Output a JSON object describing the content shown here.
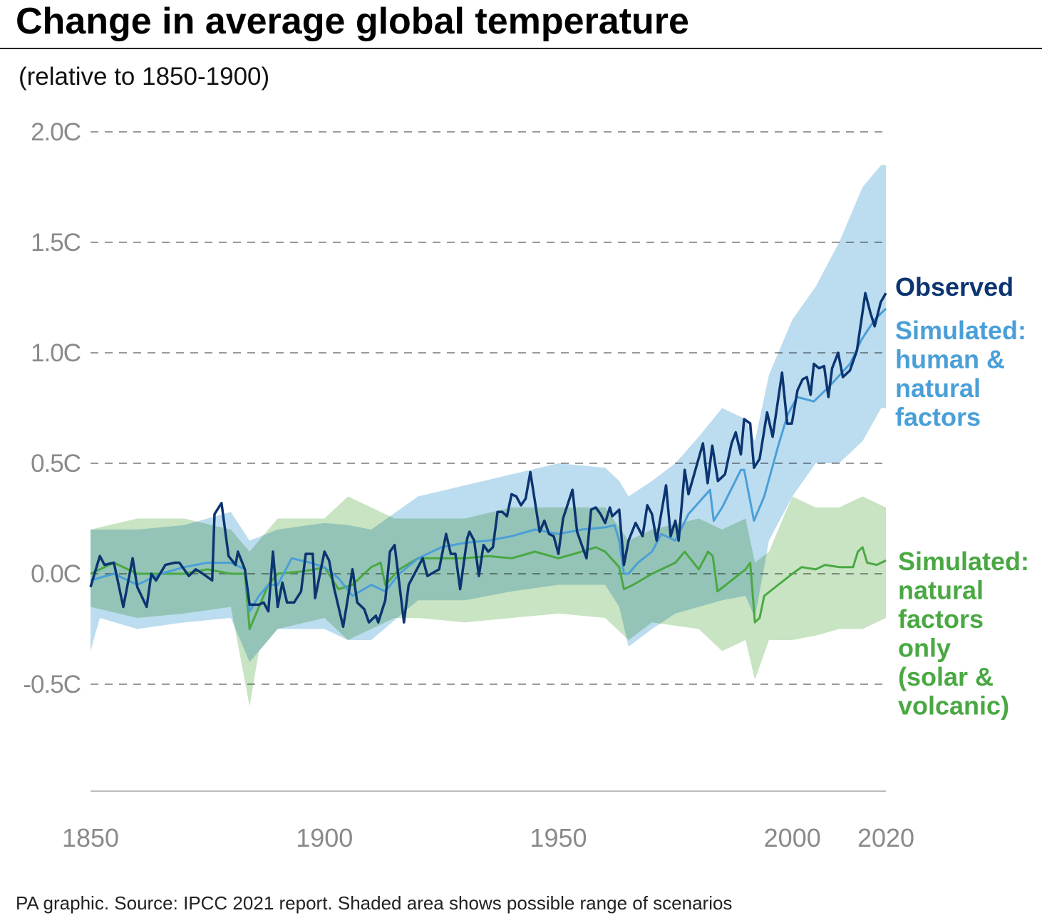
{
  "title": "Change in average global temperature",
  "subtitle": "(relative to 1850-1900)",
  "footer": "PA graphic. Source: IPCC 2021 report. Shaded area shows possible range of scenarios",
  "colors": {
    "observed": "#0b3470",
    "human_natural": "#4a9fd8",
    "human_natural_band": "#bcdcef",
    "natural": "#4aa843",
    "natural_band": "#c8e4c3",
    "grid": "#9a9a9a"
  },
  "chart_data": {
    "type": "line",
    "title": "Change in average global temperature",
    "subtitle": "(relative to 1850-1900)",
    "xlim": [
      1850,
      2020
    ],
    "ylim": [
      -0.95,
      2.0
    ],
    "x_ticks": [
      1850,
      1900,
      1950,
      2000,
      2020
    ],
    "x_tick_labels": [
      "1850",
      "1900",
      "1950",
      "2000",
      "2020"
    ],
    "y_ticks": [
      2.0,
      1.5,
      1.0,
      0.5,
      0.0,
      -0.5
    ],
    "y_tick_labels": [
      "2.0C",
      "1.5C",
      "1.0C",
      "0.5C",
      "0.0C",
      "-0.5C"
    ],
    "grid": "horizontal dashed",
    "legend_placement": "right, labels at line ends",
    "series": [
      {
        "name": "Observed",
        "x": [
          1850,
          1852,
          1853,
          1855,
          1857,
          1859,
          1860,
          1862,
          1863,
          1864,
          1866,
          1868,
          1869,
          1871,
          1872.5,
          1874,
          1876,
          1876.5,
          1878,
          1879.5,
          1881,
          1881.5,
          1883,
          1884,
          1886,
          1887,
          1888,
          1889,
          1890,
          1891,
          1892,
          1893.5,
          1895,
          1896,
          1897.5,
          1898,
          1900,
          1901,
          1902,
          1904,
          1906,
          1907,
          1908.5,
          1909.5,
          1911,
          1911.5,
          1913,
          1914,
          1915,
          1917,
          1918,
          1921,
          1922,
          1924.5,
          1926,
          1927,
          1928,
          1929,
          1930.5,
          1931,
          1932,
          1933,
          1934,
          1935,
          1936,
          1937,
          1938,
          1939,
          1940,
          1941,
          1942,
          1943,
          1944,
          1946,
          1947,
          1948,
          1949,
          1950,
          1951,
          1953,
          1954,
          1956,
          1957,
          1958,
          1959,
          1960,
          1961,
          1961.5,
          1963,
          1964,
          1965,
          1966.5,
          1968,
          1969,
          1970,
          1971,
          1973,
          1974,
          1975,
          1975.7,
          1977,
          1977.8,
          1980.9,
          1981.9,
          1982.9,
          1984.1,
          1985.6,
          1987,
          1987.9,
          1989,
          1989.7,
          1991,
          1991.8,
          1993,
          1994.6,
          1995.8,
          1997.8,
          1998.9,
          1999.9,
          2001.1,
          2002.2,
          2003.1,
          2003.9,
          2004.6,
          2005.7,
          2006.8,
          2007.7,
          2008.5,
          2009.8,
          2010.8,
          2012.3,
          2013.8,
          2015.6,
          2016.7,
          2017.6,
          2018.9,
          2020
        ],
        "y": [
          -0.06,
          0.08,
          0.04,
          0.05,
          -0.15,
          0.07,
          -0.06,
          -0.15,
          0.0,
          -0.03,
          0.04,
          0.05,
          0.05,
          -0.01,
          0.02,
          0.0,
          -0.03,
          0.27,
          0.32,
          0.08,
          0.04,
          0.1,
          0.02,
          -0.14,
          -0.14,
          -0.13,
          -0.17,
          0.1,
          -0.15,
          -0.04,
          -0.13,
          -0.13,
          -0.08,
          0.09,
          0.09,
          -0.11,
          0.1,
          0.06,
          -0.06,
          -0.24,
          0.02,
          -0.13,
          -0.16,
          -0.22,
          -0.19,
          -0.22,
          -0.12,
          0.1,
          0.13,
          -0.22,
          -0.05,
          0.07,
          -0.01,
          0.02,
          0.18,
          0.09,
          0.09,
          -0.07,
          0.16,
          0.19,
          0.15,
          -0.01,
          0.13,
          0.1,
          0.12,
          0.28,
          0.28,
          0.26,
          0.36,
          0.35,
          0.31,
          0.34,
          0.46,
          0.19,
          0.24,
          0.18,
          0.17,
          0.09,
          0.25,
          0.38,
          0.19,
          0.07,
          0.29,
          0.3,
          0.27,
          0.23,
          0.3,
          0.26,
          0.29,
          0.04,
          0.15,
          0.23,
          0.17,
          0.31,
          0.27,
          0.15,
          0.4,
          0.17,
          0.24,
          0.15,
          0.47,
          0.36,
          0.59,
          0.41,
          0.58,
          0.42,
          0.45,
          0.59,
          0.64,
          0.54,
          0.7,
          0.68,
          0.48,
          0.52,
          0.73,
          0.62,
          0.91,
          0.68,
          0.68,
          0.83,
          0.88,
          0.89,
          0.81,
          0.95,
          0.93,
          0.94,
          0.8,
          0.93,
          1.0,
          0.89,
          0.92,
          1.01,
          1.27,
          1.18,
          1.12,
          1.23,
          1.27
        ]
      },
      {
        "name": "Simulated: human & natural factors",
        "x": [
          1850,
          1855,
          1860,
          1865,
          1870,
          1875,
          1880,
          1883,
          1884,
          1886,
          1888,
          1890,
          1893,
          1897,
          1900,
          1903,
          1906,
          1910,
          1913,
          1916,
          1920,
          1925,
          1930,
          1935,
          1940,
          1945,
          1950,
          1955,
          1960,
          1962,
          1963,
          1964,
          1965,
          1967,
          1970,
          1972,
          1975,
          1977.8,
          1982.4,
          1983.2,
          1985,
          1989,
          1989.7,
          1991.8,
          1994,
          1997,
          1999,
          2001,
          2004.6,
          2008,
          2012.3,
          2014.8,
          2017.6,
          2020
        ],
        "y": [
          -0.03,
          0.0,
          -0.05,
          0.0,
          0.03,
          0.05,
          0.05,
          0.02,
          -0.17,
          -0.1,
          -0.05,
          -0.05,
          0.07,
          0.05,
          0.03,
          -0.02,
          -0.1,
          -0.05,
          -0.08,
          0.0,
          0.07,
          0.12,
          0.14,
          0.15,
          0.17,
          0.2,
          0.18,
          0.2,
          0.21,
          0.22,
          0.15,
          0.0,
          0.0,
          0.05,
          0.1,
          0.18,
          0.15,
          0.27,
          0.38,
          0.24,
          0.3,
          0.47,
          0.47,
          0.24,
          0.35,
          0.58,
          0.72,
          0.8,
          0.78,
          0.85,
          0.95,
          1.06,
          1.15,
          1.2
        ]
      },
      {
        "name": "Simulated: natural factors only (solar & volcanic)",
        "x": [
          1850,
          1855,
          1860,
          1865,
          1870,
          1875,
          1880,
          1883,
          1884,
          1886,
          1888,
          1890,
          1895,
          1898,
          1900,
          1903,
          1906,
          1910,
          1912,
          1913,
          1916,
          1920,
          1925,
          1930,
          1935,
          1940,
          1945,
          1950,
          1955,
          1958,
          1960,
          1963,
          1964,
          1966,
          1970,
          1975,
          1977,
          1980,
          1982,
          1983,
          1984,
          1987,
          1990,
          1991,
          1992,
          1993,
          1994,
          1997,
          2000,
          2002,
          2005,
          2007,
          2010,
          2013,
          2014,
          2015,
          2016,
          2018,
          2020
        ],
        "y": [
          0.0,
          0.05,
          0.0,
          0.0,
          0.0,
          0.02,
          0.0,
          0.0,
          -0.25,
          -0.15,
          -0.05,
          0.0,
          0.01,
          0.02,
          0.03,
          -0.07,
          -0.05,
          0.03,
          0.05,
          -0.05,
          0.02,
          0.07,
          0.07,
          0.07,
          0.08,
          0.07,
          0.1,
          0.07,
          0.1,
          0.12,
          0.1,
          0.03,
          -0.07,
          -0.05,
          0.0,
          0.05,
          0.1,
          0.02,
          0.1,
          0.08,
          -0.08,
          -0.03,
          0.02,
          0.05,
          -0.22,
          -0.2,
          -0.1,
          -0.05,
          0.0,
          0.03,
          0.02,
          0.04,
          0.03,
          0.03,
          0.1,
          0.12,
          0.05,
          0.04,
          0.06
        ]
      }
    ],
    "ranges": [
      {
        "name": "human & natural factors range",
        "x": [
          1850,
          1852,
          1860,
          1870,
          1880,
          1884,
          1890,
          1900,
          1905,
          1910,
          1920,
          1930,
          1940,
          1950,
          1960,
          1963,
          1965,
          1970,
          1975,
          1980,
          1985,
          1990,
          1992,
          1995,
          2000,
          2005,
          2010,
          2015,
          2019,
          2020
        ],
        "upper": [
          0.2,
          0.2,
          0.2,
          0.22,
          0.28,
          0.15,
          0.2,
          0.23,
          0.22,
          0.2,
          0.35,
          0.4,
          0.45,
          0.5,
          0.48,
          0.42,
          0.35,
          0.42,
          0.5,
          0.62,
          0.75,
          0.7,
          0.6,
          0.9,
          1.15,
          1.3,
          1.5,
          1.75,
          1.85,
          1.85
        ],
        "lower": [
          -0.35,
          -0.2,
          -0.25,
          -0.22,
          -0.2,
          -0.4,
          -0.25,
          -0.25,
          -0.3,
          -0.3,
          -0.12,
          -0.12,
          -0.08,
          -0.05,
          -0.05,
          -0.15,
          -0.33,
          -0.25,
          -0.18,
          -0.15,
          -0.12,
          -0.1,
          -0.2,
          0.15,
          0.35,
          0.5,
          0.5,
          0.6,
          0.75,
          0.75
        ]
      },
      {
        "name": "natural factors only range",
        "x": [
          1850,
          1860,
          1870,
          1880,
          1884,
          1886,
          1890,
          1900,
          1905,
          1910,
          1915,
          1920,
          1930,
          1940,
          1950,
          1960,
          1965,
          1970,
          1980,
          1985,
          1990,
          1992,
          1995,
          2000,
          2005,
          2010,
          2015,
          2020
        ],
        "upper": [
          0.2,
          0.25,
          0.25,
          0.2,
          0.1,
          0.15,
          0.25,
          0.25,
          0.35,
          0.3,
          0.25,
          0.25,
          0.25,
          0.3,
          0.3,
          0.3,
          0.15,
          0.2,
          0.25,
          0.2,
          0.25,
          0.05,
          0.1,
          0.35,
          0.3,
          0.3,
          0.35,
          0.3
        ],
        "lower": [
          -0.15,
          -0.2,
          -0.18,
          -0.15,
          -0.6,
          -0.35,
          -0.25,
          -0.2,
          -0.3,
          -0.25,
          -0.2,
          -0.2,
          -0.22,
          -0.2,
          -0.18,
          -0.2,
          -0.3,
          -0.22,
          -0.25,
          -0.35,
          -0.3,
          -0.48,
          -0.3,
          -0.3,
          -0.28,
          -0.25,
          -0.25,
          -0.2
        ]
      }
    ]
  },
  "legend": {
    "observed": [
      "Observed"
    ],
    "human_natural": [
      "Simulated:",
      "human &",
      "natural",
      "factors"
    ],
    "natural": [
      "Simulated:",
      "natural",
      "factors",
      "only",
      "(solar &",
      "volcanic)"
    ]
  }
}
